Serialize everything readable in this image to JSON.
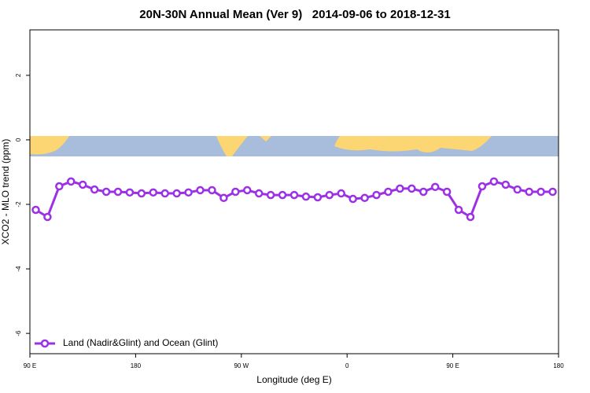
{
  "chart_data": {
    "type": "line",
    "title": "20N-30N Annual Mean (Ver 9)   2014-09-06 to 2018-12-31",
    "xlabel": "Longitude (deg E)",
    "ylabel": "XCO2 - MLO trend (ppm)",
    "x": [
      95,
      105,
      115,
      125,
      135,
      145,
      155,
      165,
      175,
      185,
      195,
      205,
      215,
      225,
      235,
      245,
      255,
      265,
      275,
      285,
      295,
      305,
      315,
      325,
      335,
      345,
      355,
      365,
      375,
      385,
      395,
      405,
      415,
      425,
      435,
      445,
      455,
      465,
      475,
      485,
      495,
      505,
      515,
      525,
      535
    ],
    "series": [
      {
        "name": "Land (Nadir&Glint) and Ocean (Glint)",
        "color": "#9b30e6",
        "values": [
          -2.17,
          -2.39,
          -1.44,
          -1.29,
          -1.39,
          -1.54,
          -1.61,
          -1.61,
          -1.63,
          -1.66,
          -1.63,
          -1.66,
          -1.66,
          -1.63,
          -1.56,
          -1.56,
          -1.8,
          -1.61,
          -1.56,
          -1.66,
          -1.71,
          -1.71,
          -1.71,
          -1.76,
          -1.78,
          -1.71,
          -1.66,
          -1.83,
          -1.8,
          -1.71,
          -1.61,
          -1.51,
          -1.51,
          -1.61,
          -1.46,
          -1.61,
          -2.17,
          -2.39,
          -1.44,
          -1.29,
          -1.39,
          -1.54,
          -1.61,
          -1.61,
          -1.61
        ]
      }
    ],
    "xlim": [
      90,
      540
    ],
    "xticks": [
      {
        "value": 90,
        "label": "90 E"
      },
      {
        "value": 180,
        "label": "180"
      },
      {
        "value": 270,
        "label": "90 W"
      },
      {
        "value": 360,
        "label": "0"
      },
      {
        "value": 450,
        "label": "90 E"
      },
      {
        "value": 540,
        "label": "180"
      }
    ],
    "ylim": [
      -6.63,
      3.41
    ],
    "yticks": [
      -6,
      -4,
      -2,
      0,
      2
    ],
    "legend": "bottom-left"
  }
}
